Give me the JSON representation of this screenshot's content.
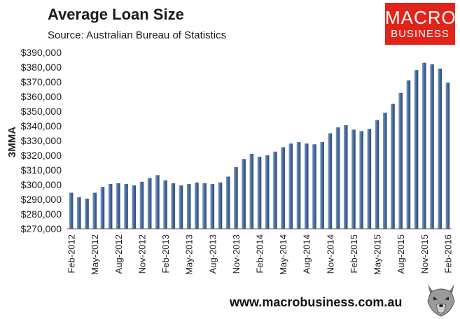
{
  "header": {
    "title": "Average Loan Size",
    "source": "Source: Australian Bureau of Statistics"
  },
  "logo": {
    "line1": "MACRO",
    "line2": "BUSINESS"
  },
  "footer": {
    "url": "www.macrobusiness.com.au"
  },
  "colors": {
    "bar": "#41669a",
    "bar_light": "#7f9fc6",
    "logo_bg": "#e2231a"
  },
  "chart_data": {
    "type": "bar",
    "ylabel": "3MMA",
    "ylim": [
      270000,
      390000
    ],
    "ytick_step": 10000,
    "yticks": [
      "$270,000",
      "$280,000",
      "$290,000",
      "$300,000",
      "$310,000",
      "$320,000",
      "$330,000",
      "$340,000",
      "$350,000",
      "$360,000",
      "$370,000",
      "$380,000",
      "$390,000"
    ],
    "grid": false,
    "categories": [
      "Feb-2012",
      "Mar-2012",
      "Apr-2012",
      "May-2012",
      "Jun-2012",
      "Jul-2012",
      "Aug-2012",
      "Sep-2012",
      "Oct-2012",
      "Nov-2012",
      "Dec-2012",
      "Jan-2013",
      "Feb-2013",
      "Mar-2013",
      "Apr-2013",
      "May-2013",
      "Jun-2013",
      "Jul-2013",
      "Aug-2013",
      "Sep-2013",
      "Oct-2013",
      "Nov-2013",
      "Dec-2013",
      "Jan-2014",
      "Feb-2014",
      "Mar-2014",
      "Apr-2014",
      "May-2014",
      "Jun-2014",
      "Jul-2014",
      "Aug-2014",
      "Sep-2014",
      "Oct-2014",
      "Nov-2014",
      "Dec-2014",
      "Jan-2015",
      "Feb-2015",
      "Mar-2015",
      "Apr-2015",
      "May-2015",
      "Jun-2015",
      "Jul-2015",
      "Aug-2015",
      "Sep-2015",
      "Oct-2015",
      "Nov-2015",
      "Dec-2015",
      "Jan-2016",
      "Feb-2016"
    ],
    "tick_labels": [
      "Feb-2012",
      "May-2012",
      "Aug-2012",
      "Nov-2012",
      "Feb-2013",
      "May-2013",
      "Aug-2013",
      "Nov-2013",
      "Feb-2014",
      "May-2014",
      "Aug-2014",
      "Nov-2014",
      "Feb-2015",
      "May-2015",
      "Aug-2015",
      "Nov-2015",
      "Feb-2016"
    ],
    "values": [
      294500,
      291500,
      290500,
      294500,
      298500,
      300500,
      301000,
      300500,
      299500,
      302000,
      304500,
      306500,
      303000,
      301000,
      299500,
      300500,
      301500,
      301000,
      300500,
      301500,
      305500,
      312000,
      317500,
      321000,
      319000,
      320000,
      322500,
      325500,
      328000,
      329000,
      328000,
      327500,
      329000,
      335000,
      339000,
      340500,
      337500,
      336500,
      338000,
      344000,
      349000,
      355000,
      362500,
      371000,
      378000,
      383000,
      382000,
      379000,
      369500
    ]
  }
}
